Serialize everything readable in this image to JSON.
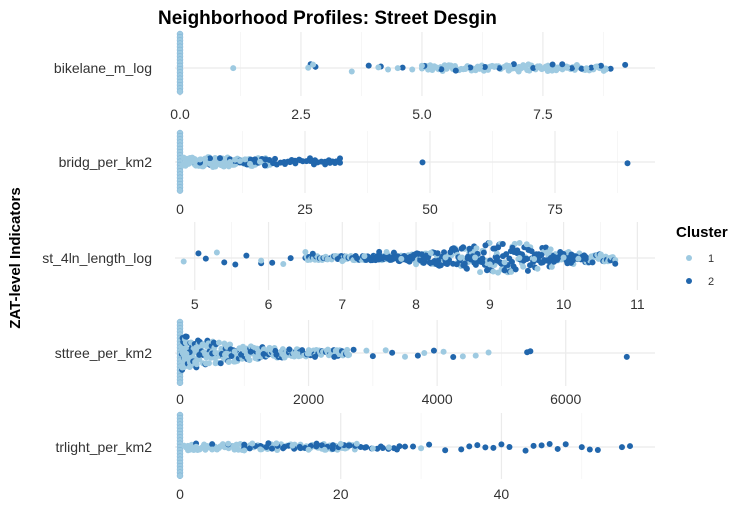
{
  "chart_data": {
    "type": "scatter",
    "title": "Neighborhood Profiles: Street Desgin",
    "ylabel": "ZAT-level Indicators",
    "legend": {
      "title": "Cluster",
      "position": "right",
      "entries": [
        {
          "label": "1",
          "color": "#9ecae1"
        },
        {
          "label": "2",
          "color": "#2166ac"
        }
      ]
    },
    "grid": true,
    "panels": [
      {
        "name": "bikelane_m_log",
        "xlim": [
          0,
          9.3
        ],
        "ticks": [
          0,
          2.5,
          5,
          7.5
        ],
        "tick_labels": [
          "0.0",
          "2.5",
          "5.0",
          "7.5"
        ],
        "wall_at": 0,
        "points": {
          "cluster1": [
            1.1,
            2.65,
            2.75,
            3.55,
            4.1,
            4.3,
            4.5,
            4.8,
            5.0,
            5.3,
            5.6,
            5.9,
            6.2,
            6.5,
            6.8,
            7.0,
            7.2,
            7.4,
            7.6,
            7.8,
            8.0,
            8.2,
            8.4,
            8.6,
            8.8
          ],
          "cluster2": [
            2.7,
            2.8,
            3.9,
            4.15,
            4.6,
            5.05,
            5.4,
            5.7,
            6.0,
            6.3,
            6.6,
            6.9,
            7.3,
            7.7,
            7.9,
            8.1,
            8.3,
            8.5,
            8.7,
            8.9,
            9.2
          ]
        }
      },
      {
        "name": "bridg_per_km2",
        "xlim": [
          0,
          90
        ],
        "ticks": [
          0,
          25,
          50,
          75
        ],
        "tick_labels": [
          "0",
          "25",
          "50",
          "75"
        ],
        "wall_at": 0,
        "points": {
          "cluster1": [
            1,
            2,
            3,
            4,
            5,
            6,
            7,
            8,
            9,
            10,
            11,
            12,
            13,
            14,
            16
          ],
          "cluster2": [
            4,
            6,
            8,
            10,
            12,
            15,
            17,
            19,
            21,
            22,
            23,
            24,
            26,
            27,
            29,
            30,
            31,
            32,
            48.5,
            89.5
          ]
        }
      },
      {
        "name": "st_4ln_length_log",
        "xlim": [
          4.8,
          10.9
        ],
        "ticks": [
          5,
          6,
          7,
          8,
          9,
          10,
          11
        ],
        "tick_labels": [
          "5",
          "6",
          "7",
          "8",
          "9",
          "10",
          "11"
        ],
        "wall_at": null,
        "points": {
          "cluster1": [
            4.85,
            5.3,
            5.9,
            6.2,
            6.5,
            6.8,
            7.0,
            7.3,
            7.6,
            7.8,
            8.0,
            8.2,
            8.4,
            8.6,
            8.8,
            9.0,
            9.2,
            9.4,
            9.6,
            9.8,
            10.0,
            10.2,
            10.5
          ],
          "cluster2": [
            5.05,
            5.15,
            5.4,
            5.55,
            5.7,
            5.9,
            6.05,
            6.3,
            6.6,
            6.95,
            7.2,
            7.5,
            7.7,
            7.9,
            8.1,
            8.3,
            8.5,
            8.7,
            8.9,
            9.1,
            9.3,
            9.5,
            9.7,
            9.9,
            10.1,
            10.3,
            10.7
          ]
        }
      },
      {
        "name": "sttree_per_km2",
        "xlim": [
          0,
          7000
        ],
        "ticks": [
          0,
          2000,
          4000,
          6000
        ],
        "tick_labels": [
          "0",
          "2000",
          "4000",
          "6000"
        ],
        "wall_at": 0,
        "points": {
          "cluster1": [
            100,
            250,
            400,
            550,
            700,
            850,
            1000,
            1200,
            1400,
            1600,
            1800,
            2000,
            2300,
            2600,
            2900,
            3200,
            3500,
            3800,
            4100,
            4400,
            4600,
            4800
          ],
          "cluster2": [
            150,
            300,
            500,
            650,
            800,
            950,
            1100,
            1300,
            1500,
            1700,
            1900,
            2100,
            2400,
            2700,
            3000,
            3300,
            3700,
            3950,
            4250,
            5400,
            5450,
            6950
          ]
        }
      },
      {
        "name": "trlight_per_km2",
        "xlim": [
          0,
          56
        ],
        "ticks": [
          0,
          20,
          40
        ],
        "tick_labels": [
          "0",
          "20",
          "40"
        ],
        "wall_at": 0,
        "points": {
          "cluster1": [
            1,
            2,
            3,
            4,
            5,
            6,
            7,
            8,
            9,
            10,
            12,
            14,
            16,
            18,
            20,
            22,
            24,
            26,
            30
          ],
          "cluster2": [
            2,
            4,
            6,
            8,
            10,
            11,
            13,
            15,
            17,
            19,
            21,
            23,
            25,
            27,
            29,
            31,
            33,
            35,
            36,
            37,
            38,
            39,
            40,
            41,
            43,
            44,
            45,
            46,
            47,
            48,
            50,
            51,
            52,
            55,
            56
          ]
        }
      }
    ]
  }
}
